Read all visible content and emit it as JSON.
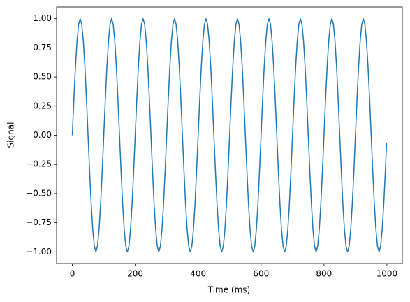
{
  "chart_data": {
    "type": "line",
    "xlabel": "Time (ms)",
    "ylabel": "Signal",
    "x": [
      0,
      5,
      10,
      15,
      20,
      25,
      30,
      35,
      40,
      45,
      50,
      55,
      60,
      65,
      70,
      75,
      80,
      85,
      90,
      95,
      100,
      105,
      110,
      115,
      120,
      125,
      130,
      135,
      140,
      145,
      150,
      155,
      160,
      165,
      170,
      175,
      180,
      185,
      190,
      195,
      200,
      205,
      210,
      215,
      220,
      225,
      230,
      235,
      240,
      245,
      250,
      255,
      260,
      265,
      270,
      275,
      280,
      285,
      290,
      295,
      300,
      305,
      310,
      315,
      320,
      325,
      330,
      335,
      340,
      345,
      350,
      355,
      360,
      365,
      370,
      375,
      380,
      385,
      390,
      395,
      400,
      405,
      410,
      415,
      420,
      425,
      430,
      435,
      440,
      445,
      450,
      455,
      460,
      465,
      470,
      475,
      480,
      485,
      490,
      495,
      500,
      505,
      510,
      515,
      520,
      525,
      530,
      535,
      540,
      545,
      550,
      555,
      560,
      565,
      570,
      575,
      580,
      585,
      590,
      595,
      600,
      605,
      610,
      615,
      620,
      625,
      630,
      635,
      640,
      645,
      650,
      655,
      660,
      665,
      670,
      675,
      680,
      685,
      690,
      695,
      700,
      705,
      710,
      715,
      720,
      725,
      730,
      735,
      740,
      745,
      750,
      755,
      760,
      765,
      770,
      775,
      780,
      785,
      790,
      795,
      800,
      805,
      810,
      815,
      820,
      825,
      830,
      835,
      840,
      845,
      850,
      855,
      860,
      865,
      870,
      875,
      880,
      885,
      890,
      895,
      900,
      905,
      910,
      915,
      920,
      925,
      930,
      935,
      940,
      945,
      950,
      955,
      960,
      965,
      970,
      975,
      980,
      985,
      990,
      995,
      999
    ],
    "series": [
      {
        "color": "#1f77b4",
        "values": [
          0,
          0.309,
          0.588,
          0.809,
          0.951,
          1,
          0.951,
          0.809,
          0.588,
          0.309,
          0,
          -0.309,
          -0.588,
          -0.809,
          -0.951,
          -1,
          -0.951,
          -0.809,
          -0.588,
          -0.309,
          0,
          0.309,
          0.588,
          0.809,
          0.951,
          1,
          0.951,
          0.809,
          0.588,
          0.309,
          0,
          -0.309,
          -0.588,
          -0.809,
          -0.951,
          -1,
          -0.951,
          -0.809,
          -0.588,
          -0.309,
          0,
          0.309,
          0.588,
          0.809,
          0.951,
          1,
          0.951,
          0.809,
          0.588,
          0.309,
          0,
          -0.309,
          -0.588,
          -0.809,
          -0.951,
          -1,
          -0.951,
          -0.809,
          -0.588,
          -0.309,
          0,
          0.309,
          0.588,
          0.809,
          0.951,
          1,
          0.951,
          0.809,
          0.588,
          0.309,
          0,
          -0.309,
          -0.588,
          -0.809,
          -0.951,
          -1,
          -0.951,
          -0.809,
          -0.588,
          -0.309,
          0,
          0.309,
          0.588,
          0.809,
          0.951,
          1,
          0.951,
          0.809,
          0.588,
          0.309,
          0,
          -0.309,
          -0.588,
          -0.809,
          -0.951,
          -1,
          -0.951,
          -0.809,
          -0.588,
          -0.309,
          0,
          0.309,
          0.588,
          0.809,
          0.951,
          1,
          0.951,
          0.809,
          0.588,
          0.309,
          0,
          -0.309,
          -0.588,
          -0.809,
          -0.951,
          -1,
          -0.951,
          -0.809,
          -0.588,
          -0.309,
          0,
          0.309,
          0.588,
          0.809,
          0.951,
          1,
          0.951,
          0.809,
          0.588,
          0.309,
          0,
          -0.309,
          -0.588,
          -0.809,
          -0.951,
          -1,
          -0.951,
          -0.809,
          -0.588,
          -0.309,
          0,
          0.309,
          0.588,
          0.809,
          0.951,
          1,
          0.951,
          0.809,
          0.588,
          0.309,
          0,
          -0.309,
          -0.588,
          -0.809,
          -0.951,
          -1,
          -0.951,
          -0.809,
          -0.588,
          -0.309,
          0,
          0.309,
          0.588,
          0.809,
          0.951,
          1,
          0.951,
          0.809,
          0.588,
          0.309,
          0,
          -0.309,
          -0.588,
          -0.809,
          -0.951,
          -1,
          -0.951,
          -0.809,
          -0.588,
          -0.309,
          0,
          0.309,
          0.588,
          0.809,
          0.951,
          1,
          0.951,
          0.809,
          0.588,
          0.309,
          0,
          -0.309,
          -0.588,
          -0.809,
          -0.951,
          -1,
          -0.951,
          -0.809,
          -0.588,
          -0.309,
          -0.063
        ]
      }
    ],
    "xlim": [
      -50,
      1049
    ],
    "xticks": [
      0,
      200,
      400,
      600,
      800,
      1000
    ],
    "ylim": [
      -1.1,
      1.1
    ],
    "yticks": [
      {
        "value": -1,
        "label": "−1.00"
      },
      {
        "value": -0.75,
        "label": "−0.75"
      },
      {
        "value": -0.5,
        "label": "−0.50"
      },
      {
        "value": -0.25,
        "label": "−0.25"
      },
      {
        "value": 0,
        "label": "0.00"
      },
      {
        "value": 0.25,
        "label": "0.25"
      },
      {
        "value": 0.5,
        "label": "0.50"
      },
      {
        "value": 0.75,
        "label": "0.75"
      },
      {
        "value": 1,
        "label": "1.00"
      }
    ],
    "grid": false
  }
}
